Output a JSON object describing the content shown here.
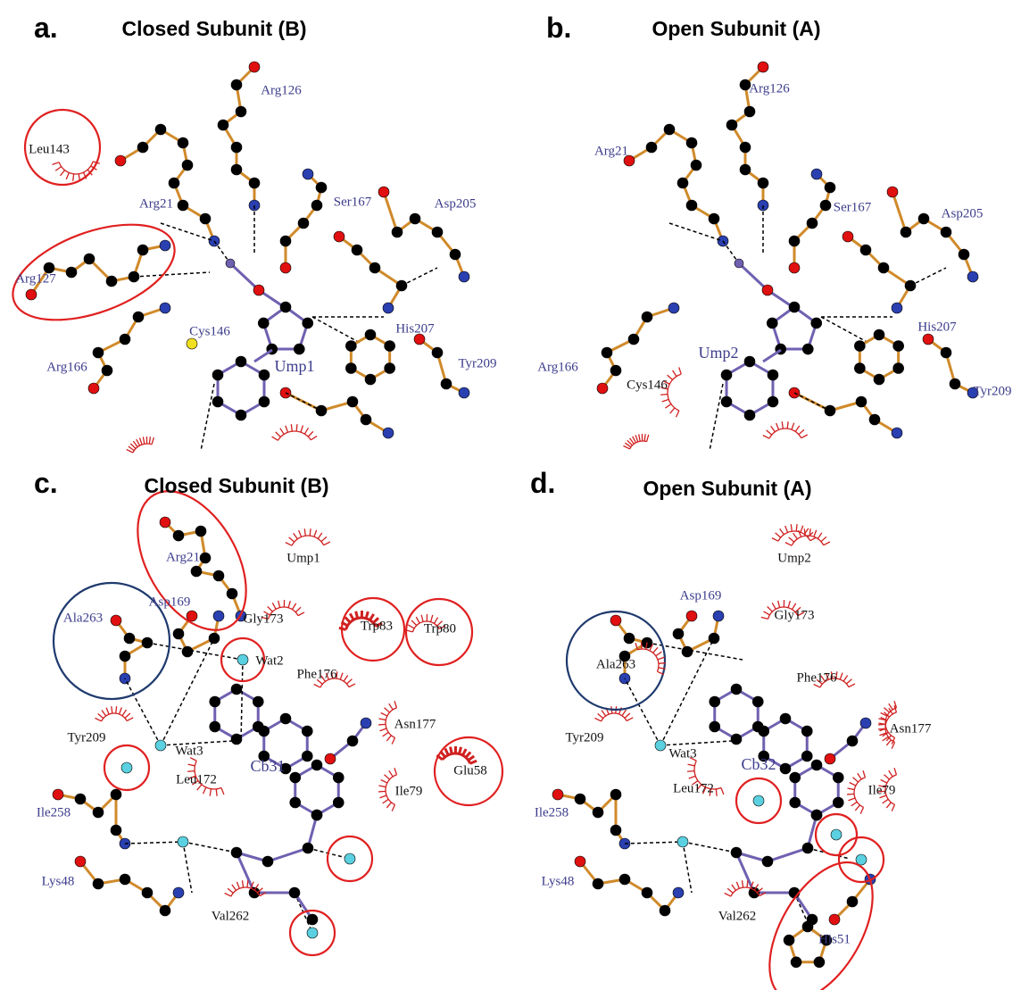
{
  "panels": [
    {
      "letter": "a.",
      "title": "Closed Subunit (B)",
      "labels": [
        "Leu143",
        "Arg126",
        "Arg21",
        "Ser167",
        "Asp205",
        "Arg127",
        "Cys146",
        "His207",
        "Ump1",
        "Tyr209",
        "Arg166"
      ]
    },
    {
      "letter": "b.",
      "title": "Open Subunit (A)",
      "labels": [
        "Arg126",
        "Arg21",
        "Ser167",
        "Asp205",
        "His207",
        "Ump2",
        "Arg166",
        "Cys146",
        "Tyr209"
      ]
    },
    {
      "letter": "c.",
      "title": "Closed Subunit (B)",
      "labels": [
        "Arg21",
        "Ump1",
        "Asp169",
        "Gly173",
        "Trp83",
        "Trp80",
        "Ala263",
        "Wat2",
        "Phe176",
        "Asn177",
        "Tyr209",
        "Wat3",
        "Cb31",
        "Glu58",
        "Leu172",
        "Ile79",
        "Ile258",
        "Lys48",
        "Val262"
      ]
    },
    {
      "letter": "d.",
      "title": "Open Subunit (A)",
      "labels": [
        "Asp169",
        "Ump2",
        "Gly173",
        "Ala263",
        "Phe176",
        "Asn177",
        "Tyr209",
        "Wat3",
        "Cb32",
        "Leu172",
        "Ile79",
        "Ile258",
        "Lys48",
        "Val262",
        "His51"
      ]
    }
  ]
}
